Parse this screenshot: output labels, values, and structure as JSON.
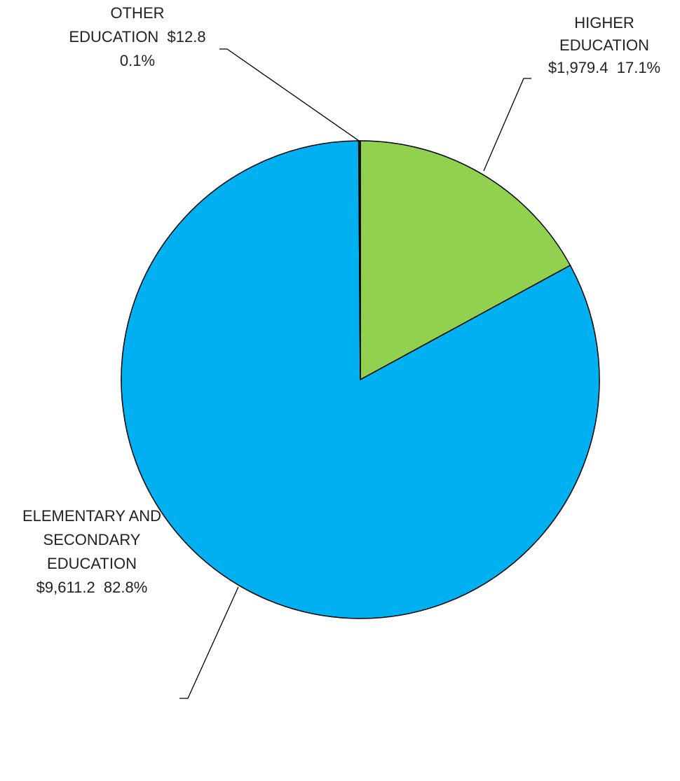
{
  "chart_data": {
    "type": "pie",
    "title": "",
    "slices": [
      {
        "name": "HIGHER EDUCATION",
        "value": 1979.4,
        "percent": 17.1,
        "color": "#92d050",
        "label_lines": [
          "HIGHER",
          "EDUCATION",
          "$1,979.4  17.1%"
        ]
      },
      {
        "name": "ELEMENTARY AND SECONDARY EDUCATION",
        "value": 9611.2,
        "percent": 82.8,
        "color": "#00b0f0",
        "label_lines": [
          "ELEMENTARY AND",
          "SECONDARY",
          "EDUCATION",
          "$9,611.2  82.8%"
        ]
      },
      {
        "name": "OTHER EDUCATION",
        "value": 12.8,
        "percent": 0.1,
        "color": "#1f2d3d",
        "label_lines": [
          "OTHER",
          "EDUCATION  $12.8",
          "0.1%"
        ]
      }
    ],
    "legend": "none"
  }
}
